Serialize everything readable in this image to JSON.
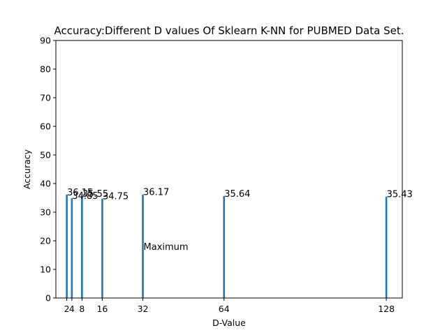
{
  "chart_data": {
    "type": "bar",
    "title": "Accuracy:Different D values Of Sklearn K-NN for PUBMED Data Set.",
    "xlabel": "D-Value",
    "ylabel": "Accuracy",
    "x": [
      2,
      4,
      8,
      16,
      32,
      64,
      128
    ],
    "values": [
      36.15,
      34.85,
      35.55,
      34.75,
      36.17,
      35.64,
      35.43
    ],
    "data_labels": [
      "36.15",
      "34.85",
      "35.55",
      "34.75",
      "36.17",
      "35.64",
      "35.43"
    ],
    "x_ticks": [
      2,
      4,
      8,
      16,
      32,
      64,
      128
    ],
    "x_tick_labels": [
      "2",
      "4",
      "8",
      "16",
      "32",
      "64",
      "128"
    ],
    "xlim": [
      -2.3,
      134.3
    ],
    "y_ticks": [
      0,
      10,
      20,
      30,
      40,
      50,
      60,
      70,
      80,
      90
    ],
    "y_tick_labels": [
      "0",
      "10",
      "20",
      "30",
      "40",
      "50",
      "60",
      "70",
      "80",
      "90"
    ],
    "ylim": [
      0,
      90
    ],
    "bar_color": "#1f77b4",
    "grid": false,
    "annotation": {
      "text": "Maximum",
      "x": 32,
      "y": 18
    }
  }
}
